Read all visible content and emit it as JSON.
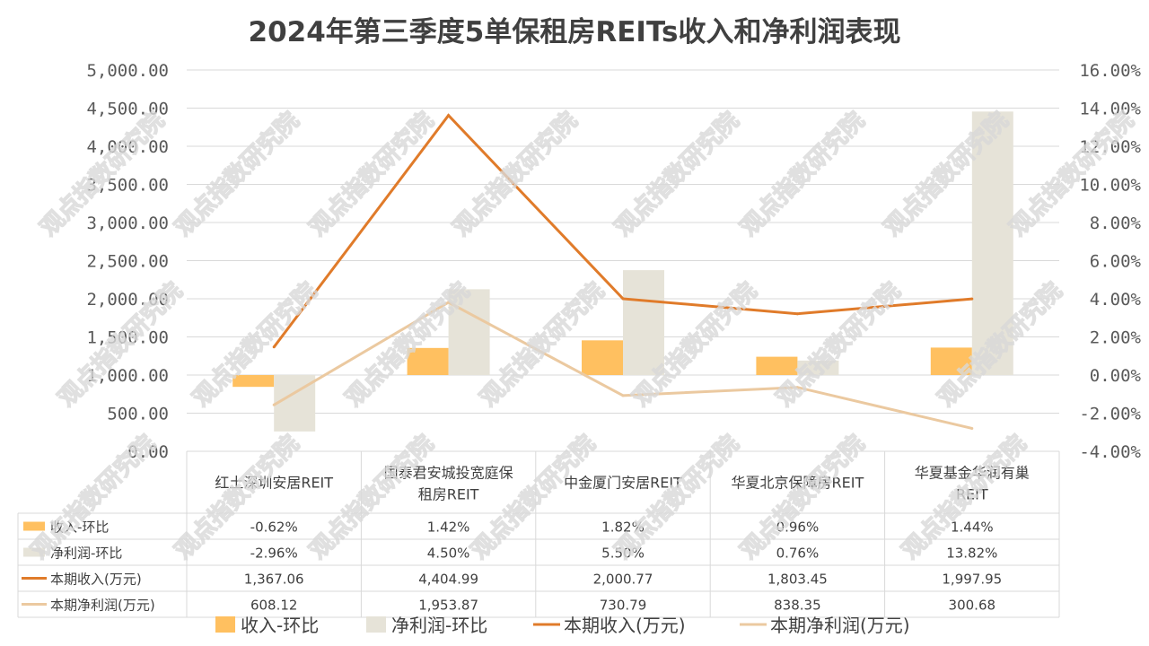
{
  "chart_data": {
    "type": "bar",
    "title": "2024年第三季度5单保租房REITs收入和净利润表现",
    "categories": [
      [
        "红土深圳安居REIT"
      ],
      [
        "国泰君安城投宽庭保",
        "租房REIT"
      ],
      [
        "中金厦门安居REIT"
      ],
      [
        "华夏北京保障房REIT"
      ],
      [
        "华夏基金华润有巢",
        "REIT"
      ]
    ],
    "left_axis": {
      "min": 0,
      "max": 5000,
      "step": 500,
      "tick_labels": [
        "0.00",
        "500.00",
        "1,000.00",
        "1,500.00",
        "2,000.00",
        "2,500.00",
        "3,000.00",
        "3,500.00",
        "4,000.00",
        "4,500.00",
        "5,000.00"
      ]
    },
    "right_axis": {
      "min": -4,
      "max": 16,
      "step": 2,
      "tick_labels": [
        "-4.00%",
        "-2.00%",
        "0.00%",
        "2.00%",
        "4.00%",
        "6.00%",
        "8.00%",
        "10.00%",
        "12.00%",
        "14.00%",
        "16.00%"
      ]
    },
    "series": [
      {
        "name": "收入-环比",
        "type": "bar",
        "axis": "right",
        "color": "#ffc060",
        "values": [
          -0.62,
          1.42,
          1.82,
          0.96,
          1.44
        ],
        "labels": [
          "-0.62%",
          "1.42%",
          "1.82%",
          "0.96%",
          "1.44%"
        ]
      },
      {
        "name": "净利润-环比",
        "type": "bar",
        "axis": "right",
        "color": "#e6e3d8",
        "values": [
          -2.96,
          4.5,
          5.5,
          0.76,
          13.82
        ],
        "labels": [
          "-2.96%",
          "4.50%",
          "5.50%",
          "0.76%",
          "13.82%"
        ]
      },
      {
        "name": "本期收入(万元)",
        "type": "line",
        "axis": "left",
        "color": "#e07b2a",
        "values": [
          1367.06,
          4404.99,
          2000.77,
          1803.45,
          1997.95
        ],
        "labels": [
          "1,367.06",
          "4,404.99",
          "2,000.77",
          "1,803.45",
          "1,997.95"
        ]
      },
      {
        "name": "本期净利润(万元)",
        "type": "line",
        "axis": "left",
        "color": "#ebc9a0",
        "values": [
          608.12,
          1953.87,
          730.79,
          838.35,
          300.68
        ],
        "labels": [
          "608.12",
          "1,953.87",
          "730.79",
          "838.35",
          "300.68"
        ]
      }
    ],
    "watermark": "观点指数研究院",
    "grid": true,
    "legend_position": "bottom"
  }
}
